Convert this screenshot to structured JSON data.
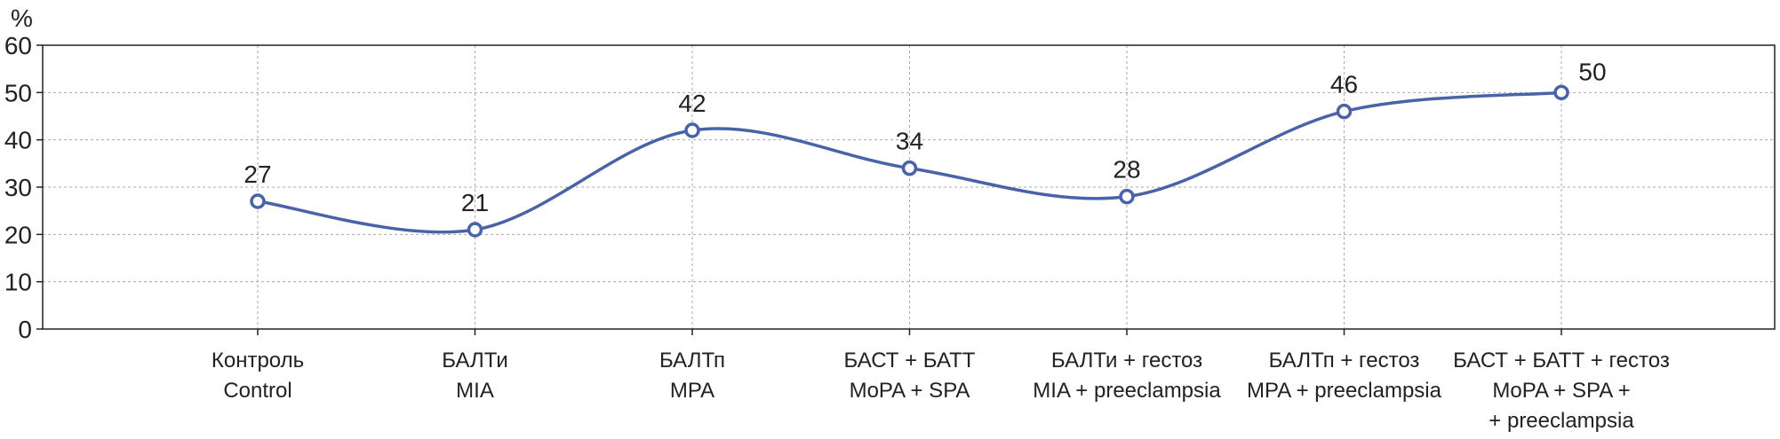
{
  "chart_data": {
    "type": "line",
    "title": "",
    "xlabel": "",
    "ylabel": "%",
    "ylim": [
      0,
      60
    ],
    "yticks": [
      0,
      10,
      20,
      30,
      40,
      50,
      60
    ],
    "grid": true,
    "smooth": true,
    "categories": [
      [
        "Контроль",
        "Control"
      ],
      [
        "БАЛТи",
        "MIA"
      ],
      [
        "БАЛТп",
        "MPA"
      ],
      [
        "БАСТ + БАТТ",
        "MoPA + SPA"
      ],
      [
        "БАЛТи + гестоз",
        "MIA + preeclampsia"
      ],
      [
        "БАЛТп + гестоз",
        "MPA + preeclampsia"
      ],
      [
        "БАСТ + БАТТ + гестоз",
        "MoPA + SPA +",
        "+ preeclampsia"
      ]
    ],
    "series": [
      {
        "values": [
          27,
          21,
          42,
          34,
          28,
          46,
          50
        ],
        "data_labels": [
          "27",
          "21",
          "42",
          "34",
          "28",
          "46",
          "50"
        ],
        "color": "#4a63a8"
      }
    ]
  }
}
